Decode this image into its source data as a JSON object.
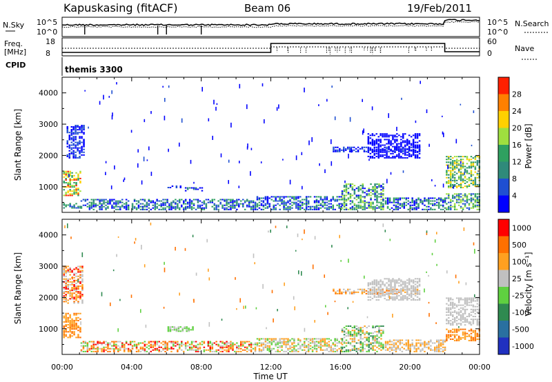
{
  "header": {
    "station": "Kapuskasing (fitACF)",
    "beam": "Beam 06",
    "date": "19/Feb/2011"
  },
  "control_panels": {
    "nsky_label": "N.Sky",
    "nsearch_label": "N.Search",
    "noise_ticks": [
      "10^5",
      "10^0"
    ],
    "freq_label": "Freq.",
    "freq_unit": "[MHz]",
    "freq_ticks": [
      "18",
      "8"
    ],
    "nave_label": "Nave",
    "nave_ticks": [
      "60",
      "0"
    ],
    "cpid_label": "CPID",
    "cpid_value": "themis 3300"
  },
  "colors": {
    "power": [
      "#0000ff",
      "#1f4fd2",
      "#2f8a7a",
      "#2fa060",
      "#9fdf3f",
      "#ffd000",
      "#ff8000",
      "#ff2000"
    ],
    "velocity": [
      "#2030c0",
      "#2a70a0",
      "#2f8a50",
      "#5fd040",
      "#c0c0c0",
      "#ffa020",
      "#ff7000",
      "#ff0000"
    ]
  },
  "chart_data": [
    {
      "type": "heatmap",
      "name": "power",
      "xlabel": "",
      "ylabel": "Slant Range [km]",
      "xlim": [
        0,
        24
      ],
      "ylim": [
        180,
        4500
      ],
      "yticks": [
        "4000",
        "3000",
        "2000",
        "1000"
      ],
      "xticks": [
        "00:00",
        "04:00",
        "08:00",
        "12:00",
        "16:00",
        "20:00",
        "00:00"
      ],
      "colorbar": {
        "label": "Power [dB]",
        "ticks": [
          "28",
          "24",
          "20",
          "16",
          "12",
          "8",
          "4"
        ]
      },
      "regions": [
        {
          "t": [
            0.0,
            1.0
          ],
          "r": [
            300,
            500
          ],
          "levels": [
            1,
            2,
            3
          ]
        },
        {
          "t": [
            1.0,
            11.0
          ],
          "r": [
            250,
            600
          ],
          "levels": [
            0,
            1,
            2,
            3
          ]
        },
        {
          "t": [
            11.0,
            16.0
          ],
          "r": [
            250,
            700
          ],
          "levels": [
            0,
            1,
            3
          ]
        },
        {
          "t": [
            16.0,
            18.5
          ],
          "r": [
            250,
            1100
          ],
          "levels": [
            0,
            2,
            3,
            4
          ]
        },
        {
          "t": [
            18.5,
            22.0
          ],
          "r": [
            250,
            650
          ],
          "levels": [
            0,
            2,
            3
          ]
        },
        {
          "t": [
            22.0,
            24.0
          ],
          "r": [
            250,
            800
          ],
          "levels": [
            1,
            3,
            4
          ]
        },
        {
          "t": [
            0.0,
            1.0
          ],
          "r": [
            700,
            1500
          ],
          "levels": [
            3,
            4,
            5,
            7
          ]
        },
        {
          "t": [
            0.2,
            1.3
          ],
          "r": [
            1900,
            3000
          ],
          "levels": [
            0,
            1
          ]
        },
        {
          "t": [
            6.0,
            6.8
          ],
          "r": [
            950,
            1050
          ],
          "levels": [
            0,
            1
          ]
        },
        {
          "t": [
            7.0,
            8.0
          ],
          "r": [
            850,
            1000
          ],
          "levels": [
            0,
            2
          ]
        },
        {
          "t": [
            15.5,
            20.5
          ],
          "r": [
            2100,
            2300
          ],
          "levels": [
            0,
            1
          ]
        },
        {
          "t": [
            17.5,
            20.5
          ],
          "r": [
            1900,
            2700
          ],
          "levels": [
            0
          ]
        },
        {
          "t": [
            22.0,
            24.0
          ],
          "r": [
            950,
            2000
          ],
          "levels": [
            2,
            3,
            4,
            5
          ]
        }
      ]
    },
    {
      "type": "heatmap",
      "name": "velocity",
      "xlabel": "Time UT",
      "ylabel": "Slant Range [km]",
      "xlim": [
        0,
        24
      ],
      "ylim": [
        180,
        4500
      ],
      "yticks": [
        "4000",
        "3000",
        "2000",
        "1000"
      ],
      "xticks": [
        "00:00",
        "04:00",
        "08:00",
        "12:00",
        "16:00",
        "20:00",
        "00:00"
      ],
      "colorbar": {
        "label": "Velocity [m s⁻¹]",
        "ticks": [
          "1000",
          "500",
          "100",
          "25",
          "-25",
          "-100",
          "-500",
          "-1000"
        ]
      },
      "regions": [
        {
          "t": [
            0.0,
            1.0
          ],
          "r": [
            700,
            1500
          ],
          "levels": [
            5,
            6
          ]
        },
        {
          "t": [
            0.0,
            1.2
          ],
          "r": [
            1800,
            3000
          ],
          "levels": [
            4,
            5,
            6,
            7
          ]
        },
        {
          "t": [
            1.0,
            11.0
          ],
          "r": [
            250,
            600
          ],
          "levels": [
            3,
            4,
            5,
            6,
            7
          ]
        },
        {
          "t": [
            11.0,
            16.0
          ],
          "r": [
            250,
            700
          ],
          "levels": [
            4,
            3,
            5
          ]
        },
        {
          "t": [
            16.0,
            18.5
          ],
          "r": [
            250,
            1100
          ],
          "levels": [
            4,
            3,
            2,
            5
          ]
        },
        {
          "t": [
            18.5,
            22.0
          ],
          "r": [
            250,
            650
          ],
          "levels": [
            4,
            5
          ]
        },
        {
          "t": [
            6.0,
            7.5
          ],
          "r": [
            900,
            1100
          ],
          "levels": [
            3,
            4
          ]
        },
        {
          "t": [
            15.5,
            20.5
          ],
          "r": [
            2100,
            2300
          ],
          "levels": [
            4,
            5,
            6
          ]
        },
        {
          "t": [
            17.5,
            20.5
          ],
          "r": [
            1900,
            2600
          ],
          "levels": [
            4
          ]
        },
        {
          "t": [
            22.0,
            24.0
          ],
          "r": [
            600,
            1000
          ],
          "levels": [
            5,
            6
          ]
        },
        {
          "t": [
            22.0,
            24.0
          ],
          "r": [
            1100,
            2000
          ],
          "levels": [
            4
          ]
        }
      ]
    }
  ]
}
